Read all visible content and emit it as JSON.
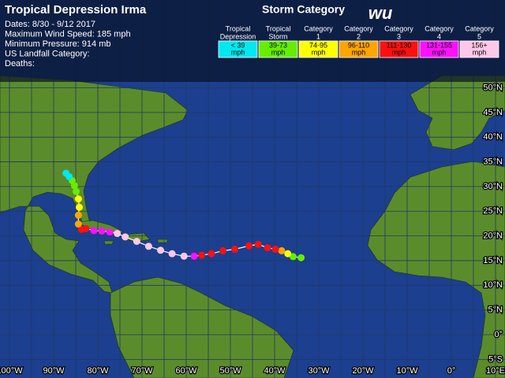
{
  "title": "Tropical Depression Irma",
  "info": [
    "Dates: 8/30 - 9/12 2017",
    "Maximum Wind Speed: 185 mph",
    "Minimum Pressure: 914 mb",
    "US Landfall Category:",
    "Deaths:"
  ],
  "legend": {
    "title": "Storm Category",
    "logo": "wu",
    "categories": [
      {
        "name": [
          "Tropical",
          "Depression"
        ],
        "range": [
          "< 39",
          "mph"
        ],
        "color": "#00e8f0"
      },
      {
        "name": [
          "Tropical",
          "Storm"
        ],
        "range": [
          "39-73",
          "mph"
        ],
        "color": "#66ee00"
      },
      {
        "name": [
          "Category",
          "1"
        ],
        "range": [
          "74-95",
          "mph"
        ],
        "color": "#ffff00"
      },
      {
        "name": [
          "Category",
          "2"
        ],
        "range": [
          "96-110",
          "mph"
        ],
        "color": "#ffa500"
      },
      {
        "name": [
          "Category",
          "3"
        ],
        "range": [
          "111-130",
          "mph"
        ],
        "color": "#ff1010"
      },
      {
        "name": [
          "Category",
          "4"
        ],
        "range": [
          "131-155",
          "mph"
        ],
        "color": "#ff10ff"
      },
      {
        "name": [
          "Category",
          "5"
        ],
        "range": [
          "156+",
          "mph"
        ],
        "color": "#ffc8e8"
      }
    ]
  },
  "latitudes": [
    {
      "value": 50,
      "label": "50°N"
    },
    {
      "value": 45,
      "label": "45°N"
    },
    {
      "value": 40,
      "label": "40°N"
    },
    {
      "value": 35,
      "label": "35°N"
    },
    {
      "value": 30,
      "label": "30°N"
    },
    {
      "value": 25,
      "label": "25°N"
    },
    {
      "value": 20,
      "label": "20°N"
    },
    {
      "value": 15,
      "label": "15°N"
    },
    {
      "value": 10,
      "label": "10°N"
    },
    {
      "value": 5,
      "label": "5°N"
    },
    {
      "value": 0,
      "label": "0°"
    },
    {
      "value": -5,
      "label": "5°S"
    }
  ],
  "longitudes": [
    {
      "value": -100,
      "label": "100°W"
    },
    {
      "value": -90,
      "label": "90°W"
    },
    {
      "value": -80,
      "label": "80°W"
    },
    {
      "value": -70,
      "label": "70°W"
    },
    {
      "value": -60,
      "label": "60°W"
    },
    {
      "value": -50,
      "label": "50°W"
    },
    {
      "value": -40,
      "label": "40°W"
    },
    {
      "value": -30,
      "label": "30°W"
    },
    {
      "value": -20,
      "label": "20°W"
    },
    {
      "value": -10,
      "label": "10°W"
    },
    {
      "value": 0,
      "label": "0°"
    },
    {
      "value": 10,
      "label": "10°E"
    }
  ],
  "track": [
    {
      "lon": -34.0,
      "lat": 15.6,
      "category": 1
    },
    {
      "lon": -35.8,
      "lat": 15.8,
      "category": 1
    },
    {
      "lon": -37.0,
      "lat": 16.4,
      "category": 2
    },
    {
      "lon": -38.4,
      "lat": 17.0,
      "category": 3
    },
    {
      "lon": -39.8,
      "lat": 17.3,
      "category": 4
    },
    {
      "lon": -41.6,
      "lat": 17.6,
      "category": 4
    },
    {
      "lon": -43.7,
      "lat": 18.3,
      "category": 4
    },
    {
      "lon": -45.8,
      "lat": 18.0,
      "category": 4
    },
    {
      "lon": -49.0,
      "lat": 17.3,
      "category": 4
    },
    {
      "lon": -51.7,
      "lat": 17.0,
      "category": 4
    },
    {
      "lon": -54.3,
      "lat": 16.4,
      "category": 4
    },
    {
      "lon": -56.5,
      "lat": 16.1,
      "category": 4
    },
    {
      "lon": -58.2,
      "lat": 15.9,
      "category": 5
    },
    {
      "lon": -60.5,
      "lat": 15.9,
      "category": 6
    },
    {
      "lon": -63.2,
      "lat": 16.4,
      "category": 6
    },
    {
      "lon": -65.8,
      "lat": 17.1,
      "category": 6
    },
    {
      "lon": -68.5,
      "lat": 17.9,
      "category": 6
    },
    {
      "lon": -71.2,
      "lat": 18.9,
      "category": 6
    },
    {
      "lon": -73.8,
      "lat": 19.8,
      "category": 6
    },
    {
      "lon": -75.6,
      "lat": 20.5,
      "category": 6
    },
    {
      "lon": -77.3,
      "lat": 20.8,
      "category": 5
    },
    {
      "lon": -79.1,
      "lat": 21.0,
      "category": 5
    },
    {
      "lon": -80.9,
      "lat": 21.1,
      "category": 5
    },
    {
      "lon": -82.7,
      "lat": 21.5,
      "category": 4
    },
    {
      "lon": -83.7,
      "lat": 21.3,
      "category": 4
    },
    {
      "lon": -84.4,
      "lat": 22.4,
      "category": 3
    },
    {
      "lon": -84.4,
      "lat": 24.2,
      "category": 3
    },
    {
      "lon": -84.2,
      "lat": 25.8,
      "category": 2
    },
    {
      "lon": -84.4,
      "lat": 27.5,
      "category": 2
    },
    {
      "lon": -84.9,
      "lat": 29.0,
      "category": 1
    },
    {
      "lon": -85.3,
      "lat": 30.2,
      "category": 1
    },
    {
      "lon": -85.8,
      "lat": 31.2,
      "category": 1
    },
    {
      "lon": -86.5,
      "lat": 32.0,
      "category": 0
    },
    {
      "lon": -87.2,
      "lat": 32.7,
      "category": 0
    }
  ]
}
